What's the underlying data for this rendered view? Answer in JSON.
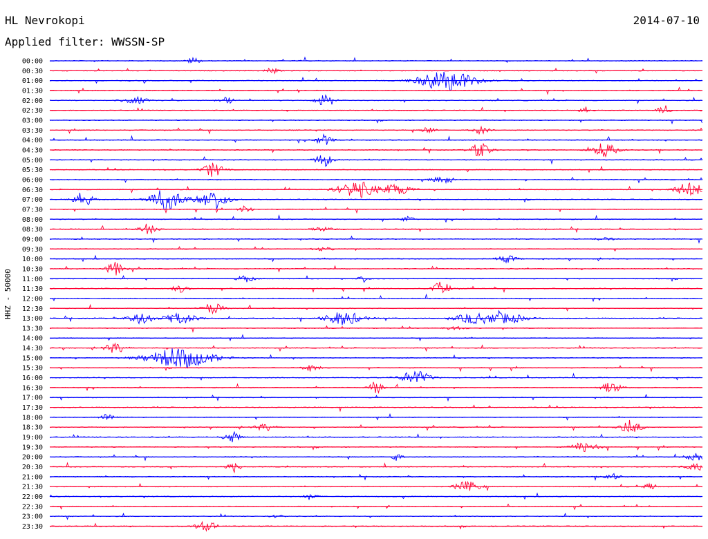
{
  "header": {
    "station": "HL Nevrokopi",
    "date": "2014-07-10",
    "filter": "Applied filter: WWSSN-SP"
  },
  "chart_data": {
    "type": "line",
    "title": "HL Nevrokopi",
    "ylabel": "HHZ - 50000",
    "colors": [
      "#0000ff",
      "#ff0033"
    ],
    "grid": false,
    "rows": [
      {
        "label": "00:00",
        "events": [
          [
            0.22,
            0.3,
            1.0
          ]
        ]
      },
      {
        "label": "00:30",
        "events": [
          [
            0.34,
            0.3,
            1.0
          ]
        ]
      },
      {
        "label": "01:00",
        "events": [
          [
            0.61,
            1.4,
            3.0
          ]
        ]
      },
      {
        "label": "01:30",
        "events": []
      },
      {
        "label": "02:00",
        "events": [
          [
            0.13,
            0.6,
            1.0
          ],
          [
            0.27,
            0.4,
            1.0
          ],
          [
            0.42,
            0.4,
            1.5
          ]
        ]
      },
      {
        "label": "02:30",
        "events": [
          [
            0.82,
            0.3,
            1.0
          ],
          [
            0.94,
            0.3,
            1.0
          ]
        ]
      },
      {
        "label": "03:00",
        "events": []
      },
      {
        "label": "03:30",
        "events": [
          [
            0.58,
            0.3,
            1.0
          ],
          [
            0.66,
            0.4,
            1.0
          ]
        ]
      },
      {
        "label": "04:00",
        "events": [
          [
            0.42,
            0.4,
            1.5
          ]
        ]
      },
      {
        "label": "04:30",
        "events": [
          [
            0.66,
            0.5,
            2.0
          ],
          [
            0.85,
            0.6,
            2.0
          ]
        ]
      },
      {
        "label": "05:00",
        "events": [
          [
            0.42,
            0.4,
            2.0
          ]
        ]
      },
      {
        "label": "05:30",
        "events": [
          [
            0.25,
            0.5,
            2.0
          ]
        ]
      },
      {
        "label": "06:00",
        "events": [
          [
            0.6,
            0.5,
            1.0
          ]
        ]
      },
      {
        "label": "06:30",
        "events": [
          [
            0.47,
            0.9,
            2.5
          ],
          [
            0.53,
            0.8,
            1.5
          ],
          [
            0.98,
            0.7,
            2.0
          ]
        ]
      },
      {
        "label": "07:00",
        "events": [
          [
            0.05,
            0.5,
            2.0
          ],
          [
            0.18,
            0.8,
            3.0
          ],
          [
            0.25,
            0.7,
            3.0
          ]
        ]
      },
      {
        "label": "07:30",
        "events": [
          [
            0.3,
            0.3,
            1.0
          ]
        ]
      },
      {
        "label": "08:00",
        "events": [
          [
            0.55,
            0.3,
            1.0
          ]
        ]
      },
      {
        "label": "08:30",
        "events": [
          [
            0.42,
            0.6,
            0.5
          ],
          [
            0.15,
            0.4,
            1.5
          ]
        ]
      },
      {
        "label": "09:00",
        "events": [
          [
            0.85,
            0.4,
            0.5
          ]
        ]
      },
      {
        "label": "09:30",
        "events": [
          [
            0.42,
            0.5,
            0.5
          ]
        ]
      },
      {
        "label": "10:00",
        "events": [
          [
            0.7,
            0.5,
            1.0
          ]
        ]
      },
      {
        "label": "10:30",
        "events": [
          [
            0.1,
            0.4,
            2.0
          ]
        ]
      },
      {
        "label": "11:00",
        "events": [
          [
            0.3,
            0.4,
            1.0
          ],
          [
            0.48,
            0.3,
            1.0
          ]
        ]
      },
      {
        "label": "11:30",
        "events": [
          [
            0.2,
            0.4,
            1.0
          ],
          [
            0.6,
            0.4,
            2.0
          ]
        ]
      },
      {
        "label": "12:00",
        "events": []
      },
      {
        "label": "12:30",
        "events": [
          [
            0.25,
            0.5,
            1.5
          ]
        ]
      },
      {
        "label": "13:00",
        "events": [
          [
            0.14,
            0.6,
            1.5
          ],
          [
            0.2,
            0.8,
            1.5
          ],
          [
            0.45,
            0.9,
            2.0
          ],
          [
            0.65,
            0.9,
            1.5
          ],
          [
            0.7,
            0.9,
            1.5
          ]
        ]
      },
      {
        "label": "13:30",
        "events": [
          [
            0.62,
            0.5,
            0.5
          ]
        ]
      },
      {
        "label": "14:00",
        "events": []
      },
      {
        "label": "14:30",
        "events": [
          [
            0.1,
            0.5,
            1.5
          ]
        ]
      },
      {
        "label": "15:00",
        "events": [
          [
            0.2,
            1.6,
            3.0
          ]
        ]
      },
      {
        "label": "15:30",
        "events": [
          [
            0.4,
            0.4,
            1.0
          ]
        ]
      },
      {
        "label": "16:00",
        "events": [
          [
            0.56,
            0.7,
            2.0
          ]
        ]
      },
      {
        "label": "16:30",
        "events": [
          [
            0.5,
            0.3,
            2.0
          ],
          [
            0.86,
            0.5,
            1.5
          ]
        ]
      },
      {
        "label": "17:00",
        "events": []
      },
      {
        "label": "17:30",
        "events": []
      },
      {
        "label": "18:00",
        "events": [
          [
            0.09,
            0.4,
            1.0
          ]
        ]
      },
      {
        "label": "18:30",
        "events": [
          [
            0.33,
            0.5,
            1.0
          ],
          [
            0.89,
            0.6,
            1.5
          ]
        ]
      },
      {
        "label": "19:00",
        "events": [
          [
            0.28,
            0.4,
            1.5
          ]
        ]
      },
      {
        "label": "19:30",
        "events": [
          [
            0.82,
            0.6,
            1.5
          ]
        ]
      },
      {
        "label": "20:00",
        "events": [
          [
            0.53,
            0.3,
            1.0
          ],
          [
            0.99,
            0.5,
            1.0
          ]
        ]
      },
      {
        "label": "20:30",
        "events": [
          [
            0.28,
            0.3,
            1.0
          ],
          [
            0.99,
            0.6,
            1.0
          ]
        ]
      },
      {
        "label": "21:00",
        "events": [
          [
            0.86,
            0.4,
            1.0
          ]
        ]
      },
      {
        "label": "21:30",
        "events": [
          [
            0.64,
            0.6,
            1.5
          ],
          [
            0.92,
            0.3,
            1.0
          ]
        ]
      },
      {
        "label": "22:00",
        "events": [
          [
            0.4,
            0.3,
            1.0
          ]
        ]
      },
      {
        "label": "22:30",
        "events": []
      },
      {
        "label": "23:00",
        "events": [
          [
            0.35,
            0.3,
            0.5
          ]
        ]
      },
      {
        "label": "23:30",
        "events": [
          [
            0.24,
            0.5,
            1.5
          ]
        ]
      }
    ]
  }
}
